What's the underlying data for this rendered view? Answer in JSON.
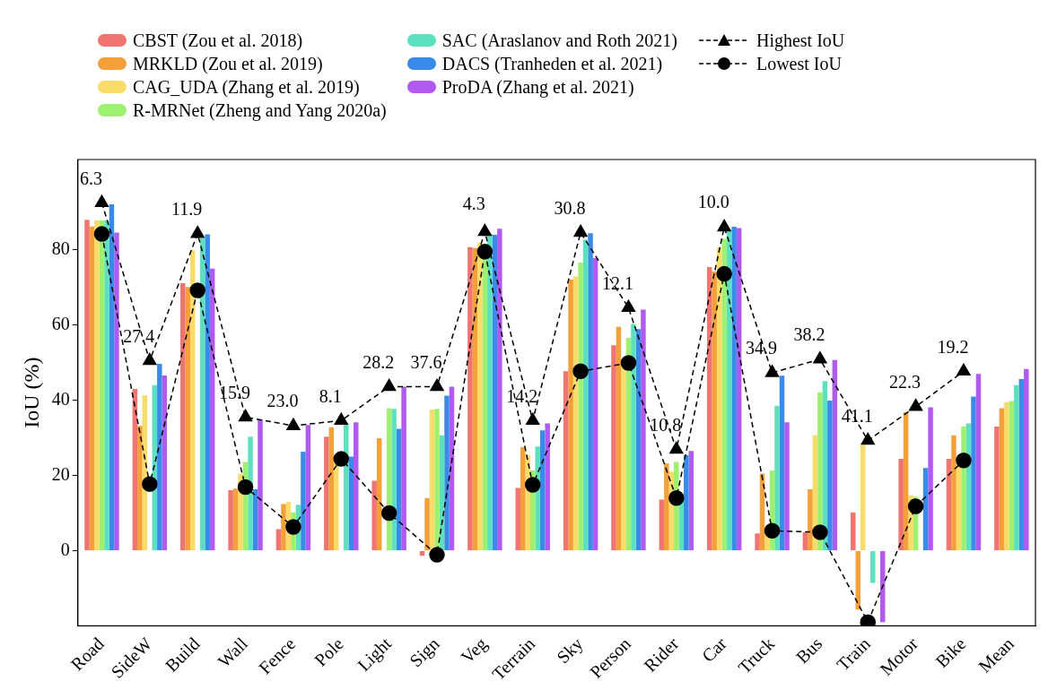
{
  "chart_data": {
    "type": "bar",
    "ylabel": "IoU (%)",
    "categories": [
      "Road",
      "SideW",
      "Build",
      "Wall",
      "Fence",
      "Pole",
      "Light",
      "Sign",
      "Veg",
      "Terrain",
      "Sky",
      "Person",
      "Rider",
      "Car",
      "Truck",
      "Bus",
      "Train",
      "Motor",
      "Bike",
      "Mean"
    ],
    "series": [
      {
        "name": "CBST (Zou et al. 2018)",
        "color": "#f07470",
        "values": [
          88.0,
          43.0,
          71.1,
          16.1,
          5.7,
          30.3,
          18.6,
          -1.4,
          80.7,
          16.7,
          47.7,
          54.6,
          13.6,
          75.4,
          4.6,
          4.9,
          10.2,
          24.4,
          24.4,
          33.0
        ]
      },
      {
        "name": "MRKLD (Zou et al. 2019)",
        "color": "#f4a03a",
        "values": [
          86.2,
          33.2,
          70.1,
          16.5,
          12.4,
          32.8,
          29.9,
          14.0,
          80.5,
          27.5,
          72.1,
          59.5,
          23.2,
          74.2,
          20.5,
          16.3,
          -15.7,
          36.8,
          30.7,
          37.9
        ]
      },
      {
        "name": "CAG_UDA (Zhang et al. 2019)",
        "color": "#f8dc6a",
        "values": [
          87.8,
          41.3,
          79.9,
          20.4,
          12.9,
          24.0,
          null,
          37.5,
          81.9,
          25.4,
          72.9,
          49.9,
          21.0,
          80.7,
          5.0,
          30.7,
          28.1,
          14.7,
          24.0,
          39.5
        ]
      },
      {
        "name": "R-MRNet (Zheng and Yang 2020a)",
        "color": "#9ef070",
        "values": [
          87.8,
          null,
          null,
          23.6,
          10.2,
          null,
          37.9,
          37.7,
          81.5,
          21.3,
          76.6,
          56.6,
          23.6,
          82.9,
          21.3,
          42.1,
          null,
          14.3,
          33.0,
          39.8
        ]
      },
      {
        "name": "SAC (Araslanov and Roth 2021)",
        "color": "#5ce0c0",
        "values": [
          87.8,
          44.0,
          83.1,
          30.3,
          12.2,
          33.6,
          37.7,
          30.7,
          84.2,
          27.7,
          82.7,
          60.3,
          15.2,
          85.3,
          38.5,
          45.1,
          -8.6,
          null,
          33.8,
          44.0
        ]
      },
      {
        "name": "DACS (Tranheden et al. 2021)",
        "color": "#3a8aea",
        "values": [
          92.1,
          49.7,
          84.1,
          16.3,
          26.3,
          25.0,
          32.4,
          41.2,
          84.0,
          32.0,
          84.4,
          58.9,
          25.4,
          86.1,
          46.5,
          39.9,
          null,
          22.0,
          41.0,
          45.6
        ]
      },
      {
        "name": "ProDA (Zhang et al. 2021)",
        "color": "#b05af0",
        "values": [
          84.6,
          46.6,
          75.0,
          34.9,
          33.4,
          34.1,
          43.6,
          43.6,
          85.6,
          33.8,
          77.8,
          64.1,
          26.5,
          85.8,
          34.1,
          50.7,
          -19.0,
          38.1,
          47.0,
          48.3
        ]
      },
      {
        "name": "Highest IoU",
        "type": "line",
        "color": "#000000",
        "marker": "triangle",
        "line_style": "dashed",
        "values": [
          92.5,
          50.5,
          84.3,
          35.5,
          33.2,
          34.6,
          43.6,
          43.6,
          84.8,
          34.6,
          84.6,
          64.6,
          26.9,
          86.0,
          47.3,
          50.9,
          29.3,
          38.3,
          47.7,
          null
        ]
      },
      {
        "name": "Lowest IoU",
        "type": "line",
        "color": "#000000",
        "marker": "circle",
        "line_style": "dashed",
        "values": [
          84.2,
          17.7,
          69.2,
          16.9,
          6.3,
          24.4,
          10.0,
          -1.1,
          79.5,
          17.5,
          47.7,
          49.9,
          14.0,
          73.6,
          5.3,
          4.9,
          -19.0,
          11.8,
          24.0,
          null
        ]
      }
    ],
    "ylim": [
      -20,
      104
    ],
    "yticks": [
      0,
      20,
      40,
      60,
      80
    ],
    "grid": false,
    "legend": "top",
    "annotations": [
      "6.3",
      "27.4",
      "11.9",
      "15.9",
      "23.0",
      "8.1",
      "28.2",
      "37.6",
      "4.3",
      "14.2",
      "30.8",
      "12.1",
      "10.8",
      "10.0",
      "34.9",
      "38.2",
      "41.1",
      "22.3",
      "19.2"
    ]
  }
}
